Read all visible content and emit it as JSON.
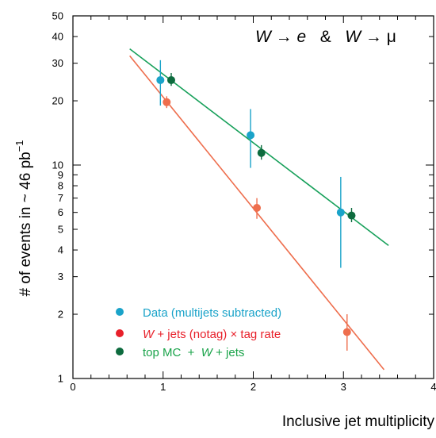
{
  "chart_data": {
    "type": "scatter",
    "xlabel": "Inclusive jet multiplicity",
    "ylabel_main": "# of events in ~ 46 pb",
    "ylabel_sup": "−1",
    "yscale": "log",
    "xlim": [
      0,
      4
    ],
    "ylim": [
      1,
      50
    ],
    "x_ticks": [
      "0",
      "1",
      "2",
      "3",
      "4"
    ],
    "y_ticks": [
      {
        "value": 1,
        "label": "1"
      },
      {
        "value": 2,
        "label": "2"
      },
      {
        "value": 3,
        "label": "3"
      },
      {
        "value": 4,
        "label": "4"
      },
      {
        "value": 5,
        "label": "5"
      },
      {
        "value": 6,
        "label": "6"
      },
      {
        "value": 7,
        "label": "7"
      },
      {
        "value": 8,
        "label": "8"
      },
      {
        "value": 9,
        "label": "9"
      },
      {
        "value": 10,
        "label": "10"
      },
      {
        "value": 20,
        "label": "20"
      },
      {
        "value": 30,
        "label": "30"
      },
      {
        "value": 40,
        "label": "40"
      },
      {
        "value": 50,
        "label": "50"
      }
    ],
    "annotation": {
      "w1": "W",
      "arrow1": " → ",
      "e": "e",
      "amp": "   &   ",
      "w2": "W",
      "arrow2": " → ",
      "mu": "μ"
    },
    "series": [
      {
        "key": "data",
        "legend_parts": [
          "Data (multijets subtracted)"
        ],
        "color": "#1aa3c9",
        "points": [
          {
            "x": 0.97,
            "y": 25,
            "lo": 19,
            "hi": 31
          },
          {
            "x": 1.97,
            "y": 13.8,
            "lo": 9.7,
            "hi": 18.3
          },
          {
            "x": 2.97,
            "y": 6,
            "lo": 3.3,
            "hi": 8.8
          }
        ]
      },
      {
        "key": "wjets",
        "legend_parts": [
          "W",
          " + jets (notag) × tag rate"
        ],
        "color": "#ee6e4d",
        "legend_color": "#e8202a",
        "points": [
          {
            "x": 1.04,
            "y": 19.7,
            "lo": 18.5,
            "hi": 21.0
          },
          {
            "x": 2.04,
            "y": 6.3,
            "lo": 5.6,
            "hi": 7.0
          },
          {
            "x": 3.04,
            "y": 1.65,
            "lo": 1.35,
            "hi": 2.0
          }
        ],
        "fit": {
          "x": [
            0.63,
            3.45
          ],
          "y": [
            32.5,
            1.1
          ]
        }
      },
      {
        "key": "topmc",
        "legend_parts": [
          "top MC  +  ",
          "W",
          " + jets"
        ],
        "color": "#0d6b3e",
        "legend_text_color": "#1aa34a",
        "points": [
          {
            "x": 1.09,
            "y": 25,
            "lo": 23.5,
            "hi": 27
          },
          {
            "x": 2.09,
            "y": 11.4,
            "lo": 10.6,
            "hi": 12.4
          },
          {
            "x": 3.09,
            "y": 5.8,
            "lo": 5.4,
            "hi": 6.3
          }
        ],
        "fit": {
          "x": [
            0.63,
            3.5
          ],
          "y": [
            35,
            4.2
          ]
        },
        "fit_color": "#17a05a"
      }
    ]
  }
}
